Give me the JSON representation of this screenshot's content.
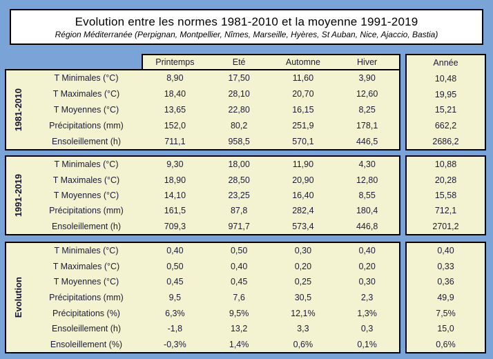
{
  "chart_data": {
    "type": "table",
    "title": "Evolution entre les normes 1981-2010 et la moyenne 1991-2019",
    "subtitle": "Région Méditerranée (Perpignan, Montpellier, Nîmes, Marseille, Hyères, St Auban, Nice, Ajaccio, Bastia)",
    "season_columns": [
      "Printemps",
      "Eté",
      "Automne",
      "Hiver"
    ],
    "year_column": "Année",
    "sections": [
      {
        "group": "1981-2010",
        "rows": [
          {
            "label": "T Minimales (°C)",
            "values": [
              "8,90",
              "17,50",
              "11,60",
              "3,90"
            ],
            "annee": "10,48"
          },
          {
            "label": "T Maximales (°C)",
            "values": [
              "18,40",
              "28,10",
              "20,70",
              "12,60"
            ],
            "annee": "19,95"
          },
          {
            "label": "T Moyennes (°C)",
            "values": [
              "13,65",
              "22,80",
              "16,15",
              "8,25"
            ],
            "annee": "15,21"
          },
          {
            "label": "Précipitations (mm)",
            "values": [
              "152,0",
              "80,2",
              "251,9",
              "178,1"
            ],
            "annee": "662,2"
          },
          {
            "label": "Ensoleillement (h)",
            "values": [
              "711,1",
              "958,5",
              "570,1",
              "446,5"
            ],
            "annee": "2686,2"
          }
        ]
      },
      {
        "group": "1991-2019",
        "rows": [
          {
            "label": "T Minimales (°C)",
            "values": [
              "9,30",
              "18,00",
              "11,90",
              "4,30"
            ],
            "annee": "10,88"
          },
          {
            "label": "T Maximales (°C)",
            "values": [
              "18,90",
              "28,50",
              "20,90",
              "12,80"
            ],
            "annee": "20,28"
          },
          {
            "label": "T Moyennes (°C)",
            "values": [
              "14,10",
              "23,25",
              "16,40",
              "8,55"
            ],
            "annee": "15,58"
          },
          {
            "label": "Précipitations (mm)",
            "values": [
              "161,5",
              "87,8",
              "282,4",
              "180,4"
            ],
            "annee": "712,1"
          },
          {
            "label": "Ensoleillement (h)",
            "values": [
              "709,3",
              "971,7",
              "573,4",
              "446,8"
            ],
            "annee": "2701,2"
          }
        ]
      },
      {
        "group": "Evolution",
        "rows": [
          {
            "label": "T Minimales (°C)",
            "values": [
              "0,40",
              "0,50",
              "0,30",
              "0,40"
            ],
            "annee": "0,40"
          },
          {
            "label": "T Maximales (°C)",
            "values": [
              "0,50",
              "0,40",
              "0,20",
              "0,20"
            ],
            "annee": "0,33"
          },
          {
            "label": "T Moyennes (°C)",
            "values": [
              "0,45",
              "0,45",
              "0,25",
              "0,30"
            ],
            "annee": "0,36"
          },
          {
            "label": "Précipitations (mm)",
            "values": [
              "9,5",
              "7,6",
              "30,5",
              "2,3"
            ],
            "annee": "49,9"
          },
          {
            "label": "Précipitations (%)",
            "values": [
              "6,3%",
              "9,5%",
              "12,1%",
              "1,3%"
            ],
            "annee": "7,5%"
          },
          {
            "label": "Ensoleillement (h)",
            "values": [
              "-1,8",
              "13,2",
              "3,3",
              "0,3"
            ],
            "annee": "15,0"
          },
          {
            "label": "Ensoleillement (%)",
            "values": [
              "-0,3%",
              "1,4%",
              "0,6%",
              "0,1%"
            ],
            "annee": "0,6%"
          }
        ]
      }
    ],
    "colors": {
      "background": "#7AA4D7",
      "cell_background": "#F3F3D1",
      "title_background": "#FFFFFF",
      "border": "#000000",
      "text": "#1B1B38"
    }
  }
}
